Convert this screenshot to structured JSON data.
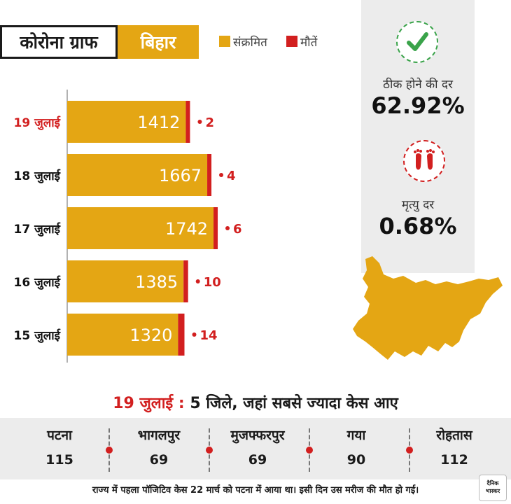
{
  "header": {
    "title": "कोरोना ग्राफ",
    "state": "बिहार",
    "legend": [
      {
        "label": "संक्रमित",
        "color": "#e4a614"
      },
      {
        "label": "मौतें",
        "color": "#d21f1f"
      }
    ]
  },
  "stats": {
    "recovery_label": "ठीक होने की दर",
    "recovery_value": "62.92%",
    "recovery_icon": "check-icon",
    "death_label": "मृत्यु दर",
    "death_value": "0.68%",
    "death_icon": "footprints-icon"
  },
  "chart_data": {
    "type": "bar",
    "orientation": "horizontal",
    "categories": [
      "19 जुलाई",
      "18 जुलाई",
      "17 जुलाई",
      "16 जुलाई",
      "15 जुलाई"
    ],
    "highlight_category": "19 जुलाई",
    "series": [
      {
        "name": "संक्रमित",
        "values": [
          1412,
          1667,
          1742,
          1385,
          1320
        ],
        "color": "#e4a614"
      },
      {
        "name": "मौतें",
        "values": [
          2,
          4,
          6,
          10,
          14
        ],
        "color": "#d21f1f"
      }
    ],
    "xlim": [
      0,
      1800
    ],
    "grid": false,
    "legend": "top"
  },
  "districts": {
    "title_date": "19 जुलाई",
    "title_text": "5 जिले, जहां सबसे ज्यादा केस आए",
    "items": [
      {
        "name": "पटना",
        "value": "115"
      },
      {
        "name": "भागलपुर",
        "value": "69"
      },
      {
        "name": "मुजफ्फरपुर",
        "value": "69"
      },
      {
        "name": "गया",
        "value": "90"
      },
      {
        "name": "रोहतास",
        "value": "112"
      }
    ]
  },
  "footnote": "राज्य में पहला पॉजिटिव केस 22 मार्च को पटना में आया था। इसी दिन उस मरीज की मौत हो गई।",
  "logo": {
    "line1": "दैनिक",
    "line2": "भास्कर"
  },
  "colors": {
    "accent": "#e4a614",
    "death": "#d21f1f",
    "panel": "#ececec",
    "check": "#3aa34a"
  }
}
